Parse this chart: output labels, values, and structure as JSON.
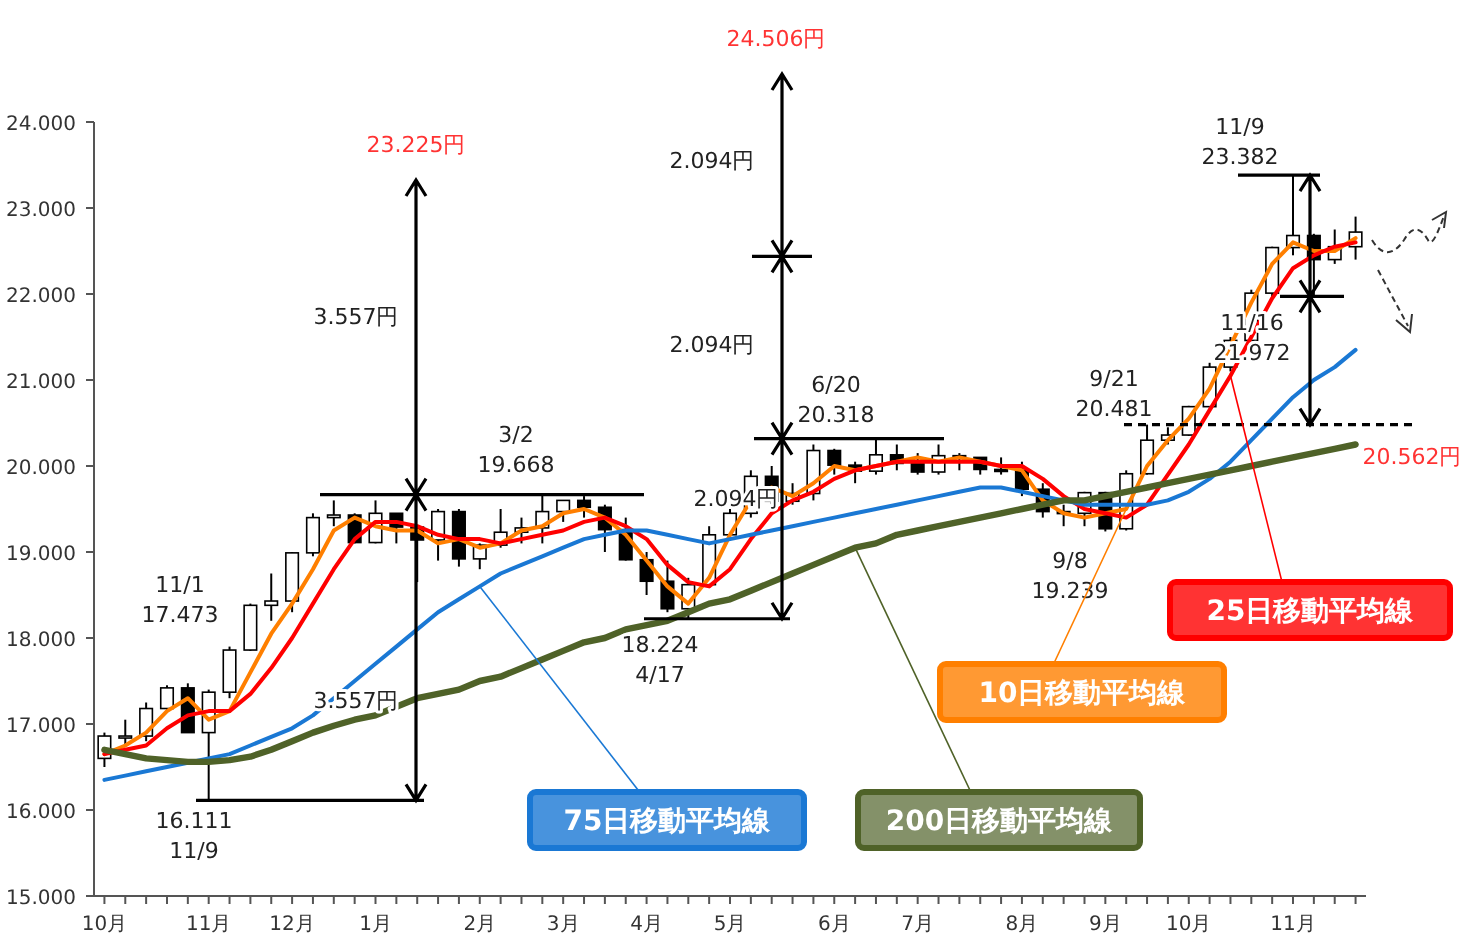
{
  "chart_data": {
    "type": "candlestick",
    "categories": [
      "10月",
      null,
      null,
      null,
      null,
      "11月",
      null,
      null,
      null,
      "12月",
      null,
      null,
      null,
      "1月",
      null,
      null,
      null,
      null,
      "2月",
      null,
      null,
      null,
      "3月",
      null,
      null,
      null,
      "4月",
      null,
      null,
      null,
      "5月",
      null,
      null,
      null,
      null,
      "6月",
      null,
      null,
      null,
      "7月",
      null,
      null,
      null,
      null,
      "8月",
      null,
      null,
      null,
      "9月",
      null,
      null,
      null,
      "10月",
      null,
      null,
      null,
      null,
      "11月",
      null,
      null,
      null
    ],
    "ohlc": [
      [
        16600,
        16900,
        16500,
        16860
      ],
      [
        16860,
        17050,
        16750,
        16860
      ],
      [
        16860,
        17250,
        16800,
        17180
      ],
      [
        17180,
        17450,
        17150,
        17420
      ],
      [
        17420,
        17473,
        16900,
        16900
      ],
      [
        16900,
        17400,
        16111,
        17370
      ],
      [
        17370,
        17900,
        17300,
        17860
      ],
      [
        17860,
        18400,
        17850,
        18380
      ],
      [
        18380,
        18750,
        18200,
        18430
      ],
      [
        18430,
        19000,
        18300,
        18990
      ],
      [
        18990,
        19450,
        18950,
        19400
      ],
      [
        19400,
        19600,
        19300,
        19430
      ],
      [
        19430,
        19450,
        19100,
        19110
      ],
      [
        19110,
        19600,
        19100,
        19450
      ],
      [
        19450,
        19450,
        19100,
        19290
      ],
      [
        19290,
        19300,
        18650,
        19140
      ],
      [
        19140,
        19500,
        18900,
        19470
      ],
      [
        19470,
        19500,
        18830,
        18920
      ],
      [
        18920,
        19100,
        18800,
        19080
      ],
      [
        19080,
        19500,
        19050,
        19230
      ],
      [
        19230,
        19400,
        19100,
        19280
      ],
      [
        19280,
        19668,
        19100,
        19470
      ],
      [
        19470,
        19600,
        19350,
        19600
      ],
      [
        19600,
        19650,
        19400,
        19520
      ],
      [
        19520,
        19550,
        19000,
        19260
      ],
      [
        19260,
        19400,
        18900,
        18910
      ],
      [
        18910,
        19000,
        18500,
        18660
      ],
      [
        18660,
        18900,
        18300,
        18340
      ],
      [
        18340,
        18700,
        18224,
        18620
      ],
      [
        18620,
        19300,
        18600,
        19200
      ],
      [
        19200,
        19500,
        19150,
        19450
      ],
      [
        19450,
        19950,
        19400,
        19880
      ],
      [
        19880,
        20000,
        19500,
        19590
      ],
      [
        19590,
        19800,
        19550,
        19680
      ],
      [
        19680,
        20250,
        19600,
        20180
      ],
      [
        20180,
        20200,
        19900,
        20010
      ],
      [
        20010,
        20050,
        19800,
        19940
      ],
      [
        19940,
        20318,
        19900,
        20130
      ],
      [
        20130,
        20250,
        19950,
        20030
      ],
      [
        20030,
        20150,
        19900,
        19930
      ],
      [
        19930,
        20250,
        19900,
        20120
      ],
      [
        20120,
        20150,
        19950,
        20100
      ],
      [
        20100,
        20100,
        19900,
        19960
      ],
      [
        19960,
        20100,
        19900,
        19950
      ],
      [
        19950,
        20050,
        19650,
        19730
      ],
      [
        19730,
        19800,
        19400,
        19470
      ],
      [
        19470,
        19550,
        19300,
        19450
      ],
      [
        19450,
        19700,
        19300,
        19690
      ],
      [
        19690,
        19700,
        19239,
        19270
      ],
      [
        19270,
        19950,
        19250,
        19910
      ],
      [
        19910,
        20481,
        19900,
        20300
      ],
      [
        20300,
        20450,
        20250,
        20360
      ],
      [
        20360,
        20700,
        20350,
        20690
      ],
      [
        20690,
        21200,
        20690,
        21150
      ],
      [
        21150,
        21500,
        21100,
        21460
      ],
      [
        21460,
        22050,
        21450,
        22010
      ],
      [
        22010,
        22550,
        21950,
        22540
      ],
      [
        22540,
        23382,
        22450,
        22680
      ],
      [
        22680,
        22700,
        21972,
        22400
      ],
      [
        22400,
        22750,
        22350,
        22550
      ],
      [
        22550,
        22900,
        22400,
        22720
      ]
    ],
    "series": [
      {
        "name": "10日移動平均線",
        "type": "line",
        "color": "#ff7f00",
        "values": [
          16650,
          16750,
          16900,
          17150,
          17300,
          17050,
          17150,
          17600,
          18050,
          18400,
          18800,
          19250,
          19400,
          19300,
          19250,
          19250,
          19100,
          19150,
          19050,
          19100,
          19250,
          19300,
          19450,
          19500,
          19400,
          19200,
          18900,
          18600,
          18400,
          18700,
          19200,
          19600,
          19750,
          19650,
          19800,
          20000,
          19950,
          20000,
          20050,
          20100,
          20050,
          20100,
          20050,
          20000,
          19950,
          19600,
          19450,
          19400,
          19450,
          19500,
          20000,
          20300,
          20550,
          20900,
          21400,
          21900,
          22350,
          22600,
          22500,
          22500,
          22650
        ]
      },
      {
        "name": "25日移動平均線",
        "type": "line",
        "color": "#ff0000",
        "values": [
          16650,
          16700,
          16750,
          16950,
          17100,
          17150,
          17150,
          17350,
          17650,
          18000,
          18400,
          18800,
          19150,
          19350,
          19350,
          19300,
          19200,
          19150,
          19150,
          19100,
          19150,
          19200,
          19250,
          19350,
          19400,
          19300,
          19150,
          18850,
          18650,
          18600,
          18800,
          19150,
          19450,
          19600,
          19700,
          19850,
          19950,
          20000,
          20050,
          20050,
          20050,
          20050,
          20050,
          20000,
          20000,
          19850,
          19650,
          19500,
          19450,
          19400,
          19550,
          19900,
          20250,
          20650,
          21050,
          21500,
          21950,
          22300,
          22450,
          22550,
          22600
        ]
      },
      {
        "name": "75日移動平均線",
        "type": "line",
        "color": "#1a78d4",
        "values": [
          16350,
          16400,
          16450,
          16500,
          16550,
          16600,
          16650,
          16750,
          16850,
          16950,
          17100,
          17300,
          17500,
          17700,
          17900,
          18100,
          18300,
          18450,
          18600,
          18750,
          18850,
          18950,
          19050,
          19150,
          19200,
          19250,
          19250,
          19200,
          19150,
          19100,
          19150,
          19200,
          19250,
          19300,
          19350,
          19400,
          19450,
          19500,
          19550,
          19600,
          19650,
          19700,
          19750,
          19750,
          19700,
          19650,
          19600,
          19550,
          19550,
          19550,
          19550,
          19600,
          19700,
          19850,
          20050,
          20300,
          20550,
          20800,
          21000,
          21150,
          21350
        ]
      },
      {
        "name": "200日移動平均線",
        "type": "line",
        "color": "#4f6228",
        "values": [
          16700,
          16650,
          16600,
          16580,
          16560,
          16560,
          16580,
          16620,
          16700,
          16800,
          16900,
          16980,
          17050,
          17100,
          17200,
          17300,
          17350,
          17400,
          17500,
          17550,
          17650,
          17750,
          17850,
          17950,
          18000,
          18100,
          18150,
          18200,
          18300,
          18400,
          18450,
          18550,
          18650,
          18750,
          18850,
          18950,
          19050,
          19100,
          19200,
          19250,
          19300,
          19350,
          19400,
          19450,
          19500,
          19550,
          19600,
          19600,
          19650,
          19700,
          19750,
          19800,
          19850,
          19900,
          19950,
          20000,
          20050,
          20100,
          20150,
          20200,
          20250
        ]
      }
    ],
    "ylim": [
      15000,
      24000
    ],
    "yticks": [
      {
        "value": 15000,
        "label": "15.000"
      },
      {
        "value": 16000,
        "label": "16.000"
      },
      {
        "value": 17000,
        "label": "17.000"
      },
      {
        "value": 18000,
        "label": "18.000"
      },
      {
        "value": 19000,
        "label": "19.000"
      },
      {
        "value": 20000,
        "label": "20.000"
      },
      {
        "value": 21000,
        "label": "21.000"
      },
      {
        "value": 22000,
        "label": "22.000"
      },
      {
        "value": 23000,
        "label": "23.000"
      },
      {
        "value": 24000,
        "label": "24.000"
      }
    ],
    "ref_lines": [
      {
        "axis": "y",
        "value": 16111
      },
      {
        "axis": "y",
        "value": 19668
      },
      {
        "axis": "y",
        "value": 18224
      },
      {
        "axis": "y",
        "value": 20318
      },
      {
        "axis": "y",
        "value": 20481,
        "line_style": "dashed"
      }
    ],
    "annotations": [
      "23.225円",
      "3.557円",
      "3.557円",
      "3/2\n19.668",
      "11/1\n17.473",
      "16.111\n11/9",
      "24.506円",
      "2.094円",
      "2.094円",
      "2.094円",
      "6/20\n20.318",
      "18.224\n4/17",
      "9/21\n20.481",
      "9/8\n19.239",
      "11/9\n23.382",
      "11/16\n21.972",
      "20.562円"
    ]
  }
}
